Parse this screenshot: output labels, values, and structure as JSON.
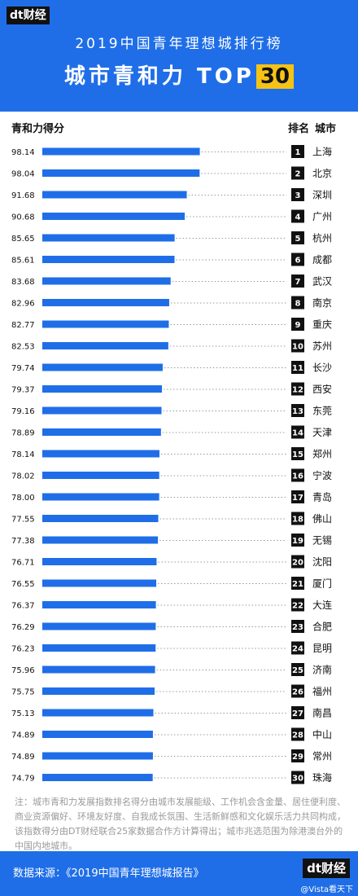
{
  "header": {
    "logo": "dt财经",
    "subtitle": "2019中国青年理想城排行榜",
    "title": "城市青和力 TOP",
    "title_highlight": "30"
  },
  "column_headers": {
    "score": "青和力得分",
    "rank": "排名",
    "city": "城市"
  },
  "colors": {
    "bar": "#1f6ee8",
    "header_bg": "#1f6ee8",
    "highlight": "#f6c315",
    "rank_badge": "#111111"
  },
  "chart_data": {
    "type": "bar",
    "orientation": "horizontal",
    "value_label": "青和力得分",
    "categories": [
      "上海",
      "北京",
      "深圳",
      "广州",
      "杭州",
      "成都",
      "武汉",
      "南京",
      "重庆",
      "苏州",
      "长沙",
      "西安",
      "东莞",
      "天津",
      "郑州",
      "宁波",
      "青岛",
      "佛山",
      "无锡",
      "沈阳",
      "厦门",
      "大连",
      "合肥",
      "昆明",
      "济南",
      "福州",
      "南昌",
      "中山",
      "常州",
      "珠海"
    ],
    "ranks": [
      1,
      2,
      3,
      4,
      5,
      6,
      7,
      8,
      9,
      10,
      11,
      12,
      13,
      14,
      15,
      16,
      17,
      18,
      19,
      20,
      21,
      22,
      23,
      24,
      25,
      26,
      27,
      28,
      29,
      30
    ],
    "values": [
      98.14,
      98.04,
      91.68,
      90.68,
      85.65,
      85.61,
      83.68,
      82.96,
      82.77,
      82.53,
      79.74,
      79.37,
      79.16,
      78.89,
      78.14,
      78.02,
      78.0,
      77.55,
      77.38,
      76.71,
      76.55,
      76.37,
      76.29,
      76.23,
      75.96,
      75.75,
      75.13,
      74.89,
      74.89,
      74.79
    ],
    "value_labels": [
      "98.14",
      "98.04",
      "91.68",
      "90.68",
      "85.65",
      "85.61",
      "83.68",
      "82.96",
      "82.77",
      "82.53",
      "79.74",
      "79.37",
      "79.16",
      "78.89",
      "78.14",
      "78.02",
      "78.00",
      "77.55",
      "77.38",
      "76.71",
      "76.55",
      "76.37",
      "76.29",
      "76.23",
      "75.96",
      "75.75",
      "75.13",
      "74.89",
      "74.89",
      "74.79"
    ],
    "grid": false,
    "legend": "none"
  },
  "footnote": "注：城市青和力发展指数排名得分由城市发展能级、工作机会含金量、居住便利度、商业资源偏好、环境友好度、自我成长氛围、生活新鲜感和文化娱乐活力共同构成，该指数得分由DT财经联合25家数据合作方计算得出；城市兆选范围为除港澳台外的中国内地城市。",
  "footer": {
    "source": "数据来源：《2019中国青年理想城报告》",
    "logo": "dt财经",
    "watermark": "@Vista看天下"
  }
}
